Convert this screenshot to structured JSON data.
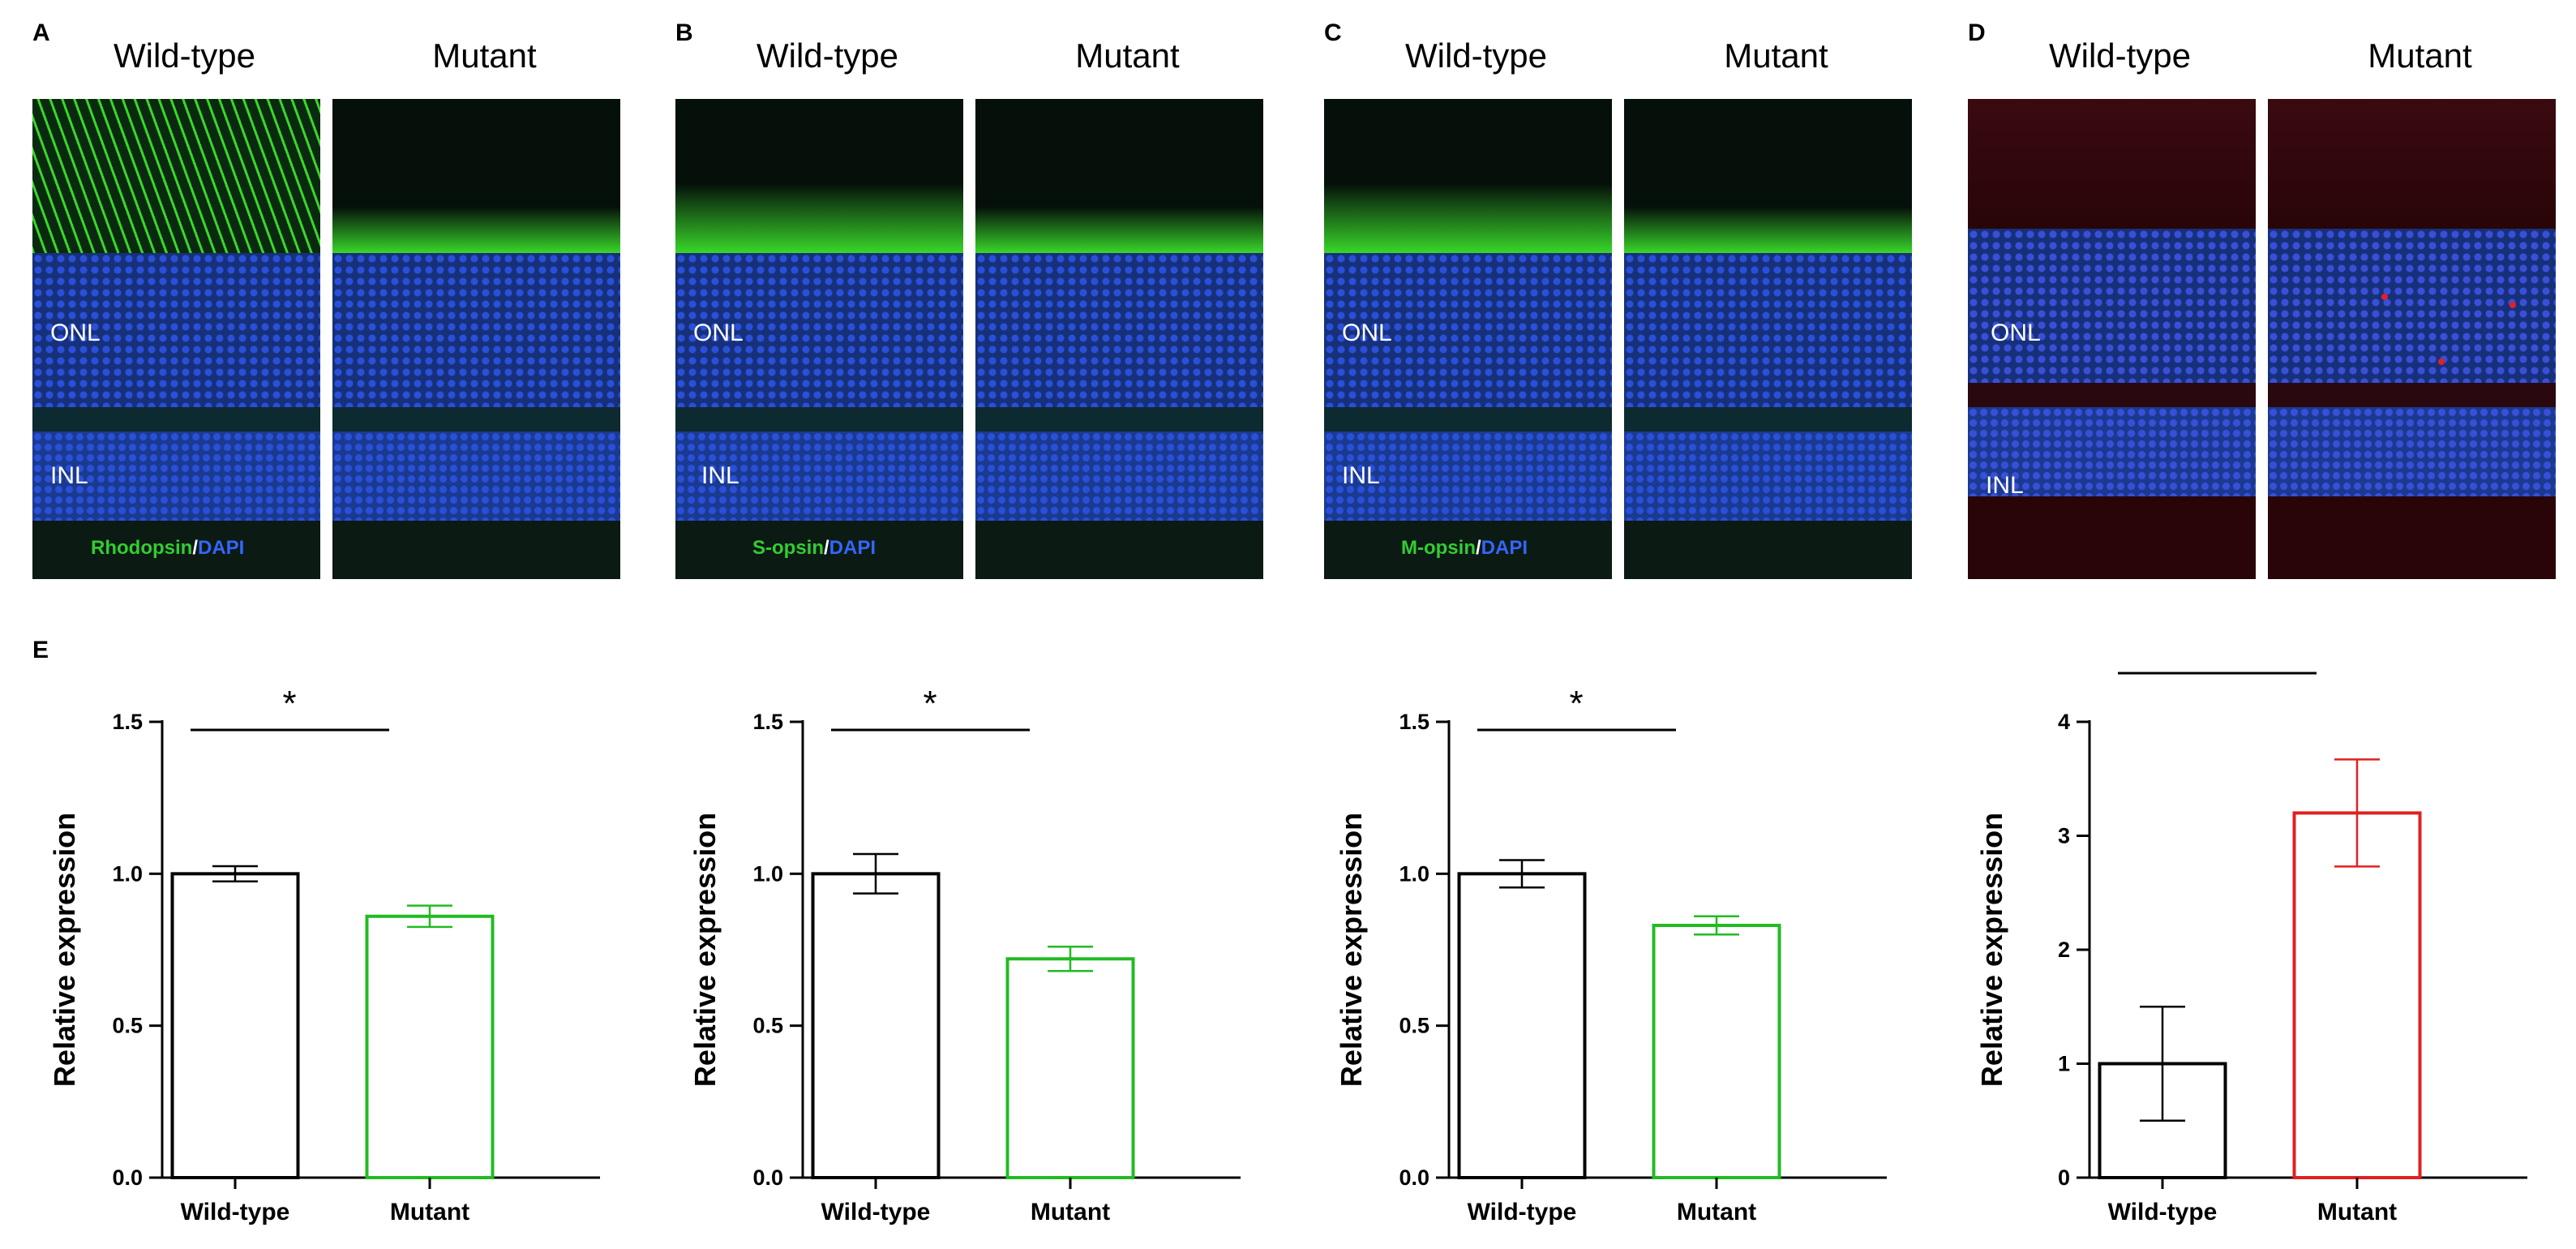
{
  "panels": [
    {
      "letter": "A",
      "columns": [
        "Wild-type",
        "Mutant"
      ],
      "layer_labels": [
        "ONL",
        "INL"
      ],
      "stain": {
        "marker": "Rhodopsin",
        "separator": "/",
        "counterstain": "DAPI",
        "marker_color": "#33cc33",
        "counter_color": "#3366ff"
      },
      "colors": {
        "marker": "#39d62a",
        "nuclei": "#2a4fd8",
        "background": "#0b1a12"
      }
    },
    {
      "letter": "B",
      "columns": [
        "Wild-type",
        "Mutant"
      ],
      "layer_labels": [
        "ONL",
        "INL"
      ],
      "stain": {
        "marker": "S-opsin",
        "separator": "/",
        "counterstain": "DAPI",
        "marker_color": "#33cc33",
        "counter_color": "#3366ff"
      },
      "colors": {
        "marker": "#39d62a",
        "nuclei": "#2a4fd8",
        "background": "#0b1a12"
      }
    },
    {
      "letter": "C",
      "columns": [
        "Wild-type",
        "Mutant"
      ],
      "layer_labels": [
        "ONL",
        "INL"
      ],
      "stain": {
        "marker": "M-opsin",
        "separator": "/",
        "counterstain": "DAPI",
        "marker_color": "#33cc33",
        "counter_color": "#3366ff"
      },
      "colors": {
        "marker": "#39d62a",
        "nuclei": "#2a4fd8",
        "background": "#0b1a12"
      }
    },
    {
      "letter": "D",
      "columns": [
        "Wild-type",
        "Mutant"
      ],
      "layer_labels": [
        "ONL",
        "INL"
      ],
      "stain": null,
      "colors": {
        "marker": "#e0202a",
        "nuclei": "#3a4fd8",
        "background": "#2a0508"
      }
    }
  ],
  "chart_section_letter": "E",
  "chart_data": [
    {
      "type": "bar",
      "categories": [
        "Wild-type",
        "Mutant"
      ],
      "values": [
        1.0,
        0.86
      ],
      "errors": [
        0.025,
        0.035
      ],
      "ylabel": "Relative expression",
      "ylim": [
        0,
        1.5
      ],
      "yticks": [
        "0.0",
        "0.5",
        "1.0",
        "1.5"
      ],
      "significance": "*",
      "bar_colors": [
        "#000000",
        "#22bb22"
      ],
      "grid": false
    },
    {
      "type": "bar",
      "categories": [
        "Wild-type",
        "Mutant"
      ],
      "values": [
        1.0,
        0.72
      ],
      "errors": [
        0.065,
        0.04
      ],
      "ylabel": "Relative expression",
      "ylim": [
        0,
        1.5
      ],
      "yticks": [
        "0.0",
        "0.5",
        "1.0",
        "1.5"
      ],
      "significance": "*",
      "bar_colors": [
        "#000000",
        "#22bb22"
      ],
      "grid": false
    },
    {
      "type": "bar",
      "categories": [
        "Wild-type",
        "Mutant"
      ],
      "values": [
        1.0,
        0.83
      ],
      "errors": [
        0.045,
        0.03
      ],
      "ylabel": "Relative expression",
      "ylim": [
        0,
        1.5
      ],
      "yticks": [
        "0.0",
        "0.5",
        "1.0",
        "1.5"
      ],
      "significance": "*",
      "bar_colors": [
        "#000000",
        "#22bb22"
      ],
      "grid": false
    },
    {
      "type": "bar",
      "categories": [
        "Wild-type",
        "Mutant"
      ],
      "values": [
        1.0,
        3.2
      ],
      "errors": [
        0.5,
        0.47
      ],
      "ylabel": "Relative expression",
      "ylim": [
        0,
        4
      ],
      "yticks": [
        "0",
        "1",
        "2",
        "3",
        "4"
      ],
      "significance": "*",
      "bar_colors": [
        "#000000",
        "#e02020"
      ],
      "grid": false
    }
  ]
}
